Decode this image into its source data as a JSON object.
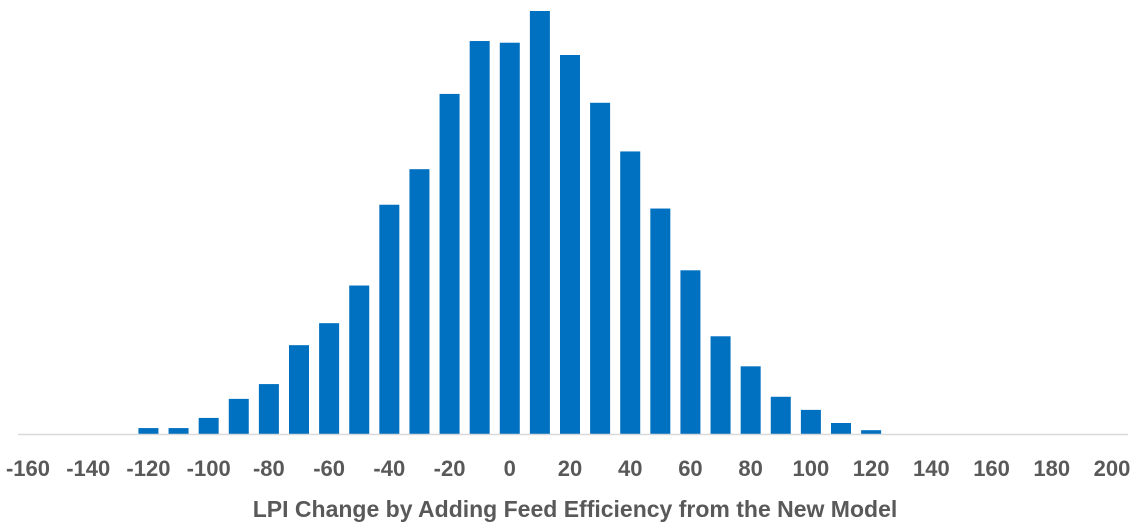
{
  "chart_data": {
    "type": "bar",
    "title": "",
    "xlabel": "LPI Change by Adding Feed Efficiency from the New Model",
    "ylabel": "",
    "x_tick_labels": [
      "-160",
      "-140",
      "-120",
      "-100",
      "-80",
      "-60",
      "-40",
      "-20",
      "0",
      "20",
      "40",
      "60",
      "80",
      "100",
      "120",
      "140",
      "160",
      "180",
      "200"
    ],
    "xlim": [
      -160,
      200
    ],
    "y_axis_visible": false,
    "y_note": "relative frequency, 0–100 scaled to the tallest bar (no y-axis printed)",
    "ylim": [
      0,
      100
    ],
    "x": [
      -120,
      -110,
      -100,
      -90,
      -80,
      -70,
      -60,
      -50,
      -40,
      -30,
      -20,
      -10,
      0,
      10,
      20,
      30,
      40,
      50,
      60,
      70,
      80,
      90,
      100,
      110,
      120
    ],
    "values": [
      1.4,
      1.4,
      3.8,
      8.3,
      11.8,
      21.0,
      26.2,
      35.1,
      54.2,
      62.6,
      80.4,
      92.9,
      92.5,
      100.0,
      89.6,
      78.3,
      66.8,
      53.3,
      38.7,
      23.1,
      16.0,
      8.8,
      5.7,
      2.6,
      0.9
    ],
    "bar_color": "#0070C0",
    "axis_color": "#D9D9D9",
    "text_color": "#595959",
    "grid": false,
    "legend": "none"
  }
}
